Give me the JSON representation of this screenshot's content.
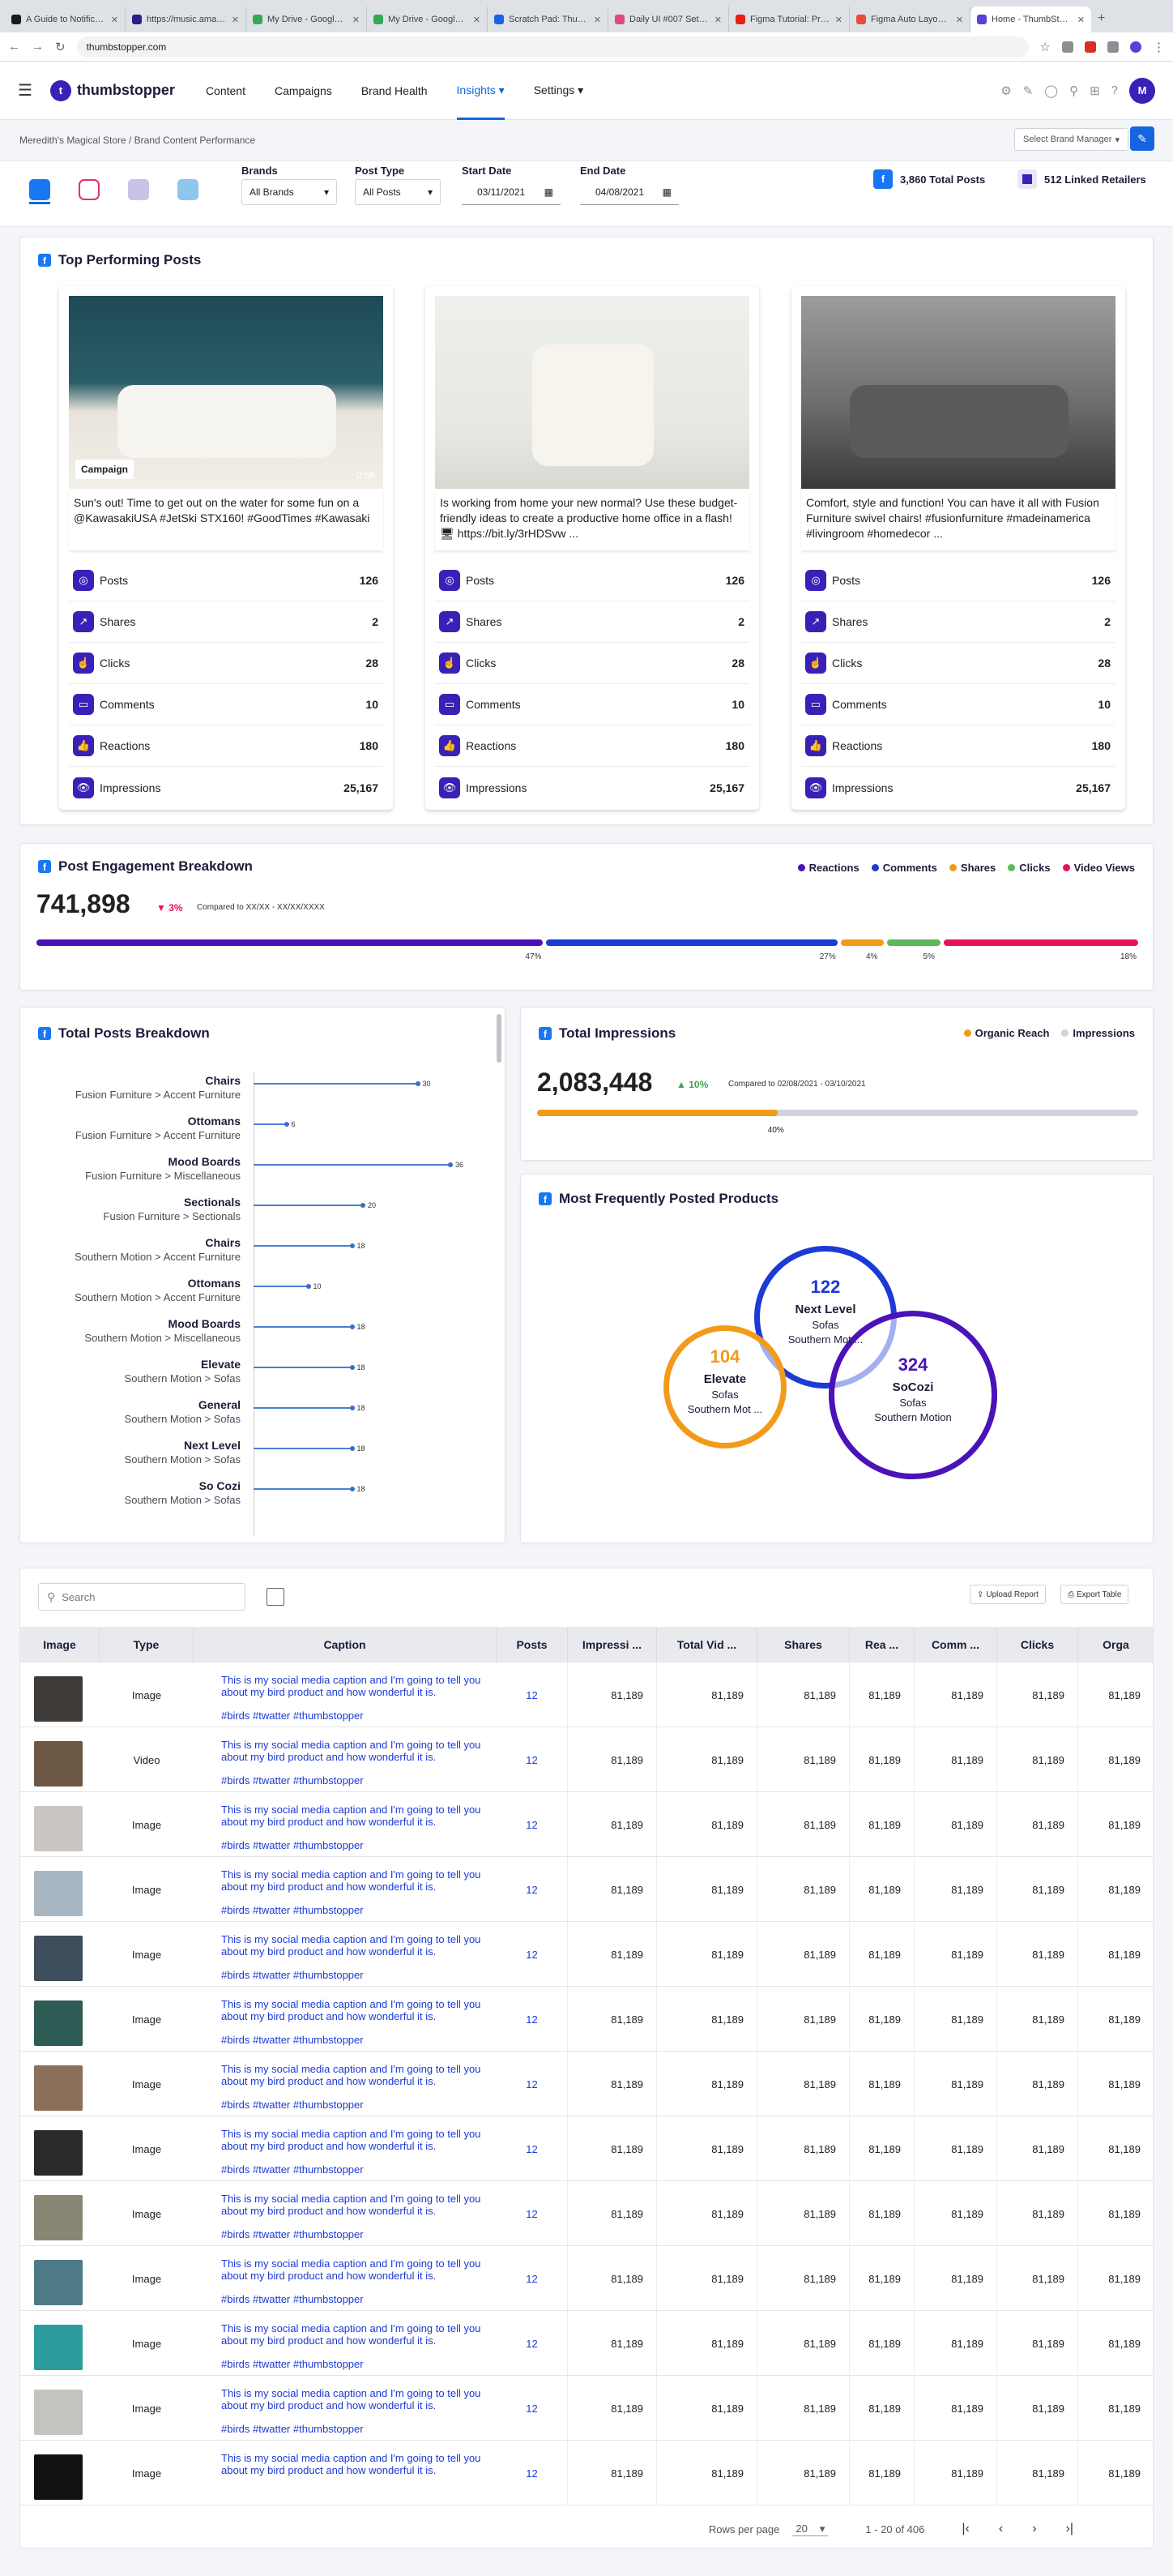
{
  "browser": {
    "tabs": [
      {
        "title": "A Guide to Notificatio",
        "color": "#1b1b1b"
      },
      {
        "title": "https://music.amazon",
        "color": "#2d1d8a"
      },
      {
        "title": "My Drive - Google Dri",
        "color": "#34a853"
      },
      {
        "title": "My Drive - Google Dri",
        "color": "#34a853"
      },
      {
        "title": "Scratch Pad: Thumbs",
        "color": "#1565e0"
      },
      {
        "title": "Daily UI #007 Settings",
        "color": "#e04880"
      },
      {
        "title": "Figma Tutorial: Protot",
        "color": "#e62117"
      },
      {
        "title": "Figma Auto Layout an",
        "color": "#e64c3c"
      },
      {
        "title": "Home - ThumbStopper",
        "color": "#5c3fd4"
      }
    ],
    "url": "thumbstopper.com"
  },
  "header": {
    "logo": "thumbstopper",
    "nav": [
      {
        "label": "Content"
      },
      {
        "label": "Campaigns"
      },
      {
        "label": "Brand Health"
      },
      {
        "label": "Insights ▾"
      },
      {
        "label": "Settings ▾"
      }
    ],
    "avatar": "M"
  },
  "breadcrumb": "Meredith's Magical Store / Brand Content Performance",
  "brand_manager": "Select Brand Manager",
  "filters": {
    "brands_label": "Brands",
    "brands_value": "All Brands",
    "posttype_label": "Post Type",
    "posttype_value": "All Posts",
    "start_label": "Start Date",
    "start_value": "03/11/2021",
    "end_label": "End Date",
    "end_value": "04/08/2021",
    "total_posts": "3,860 Total Posts",
    "linked_retailers": "512 Linked Retailers"
  },
  "top_posts": {
    "title": "Top Performing Posts",
    "posts": [
      {
        "caption": "Sun's out! Time to get out on the water for some fun on a  @KawasakiUSA #JetSki STX160! #GoodTimes #Kawasaki",
        "badge": "Campaign",
        "duration": "0:56",
        "metrics": [
          {
            "label": "Posts",
            "value": "126"
          },
          {
            "label": "Shares",
            "value": "2"
          },
          {
            "label": "Clicks",
            "value": "28"
          },
          {
            "label": "Comments",
            "value": "10"
          },
          {
            "label": "Reactions",
            "value": "180"
          },
          {
            "label": "Impressions",
            "value": "25,167"
          }
        ]
      },
      {
        "caption": "Is working from home your new normal? Use these budget-friendly ideas to create a productive home office in a flash!🖥 https://bit.ly/3rHDSvw ...",
        "badge": "",
        "duration": "",
        "metrics": [
          {
            "label": "Posts",
            "value": "126"
          },
          {
            "label": "Shares",
            "value": "2"
          },
          {
            "label": "Clicks",
            "value": "28"
          },
          {
            "label": "Comments",
            "value": "10"
          },
          {
            "label": "Reactions",
            "value": "180"
          },
          {
            "label": "Impressions",
            "value": "25,167"
          }
        ]
      },
      {
        "caption": "Comfort, style and function! You can have it all with Fusion Furniture swivel chairs! #fusionfurniture #madeinamerica #livingroom #homedecor ...",
        "badge": "",
        "duration": "",
        "metrics": [
          {
            "label": "Posts",
            "value": "126"
          },
          {
            "label": "Shares",
            "value": "2"
          },
          {
            "label": "Clicks",
            "value": "28"
          },
          {
            "label": "Comments",
            "value": "10"
          },
          {
            "label": "Reactions",
            "value": "180"
          },
          {
            "label": "Impressions",
            "value": "25,167"
          }
        ]
      }
    ]
  },
  "engagement": {
    "title": "Post Engagement Breakdown",
    "total": "741,898",
    "change": "3%",
    "compare": "Compared to XX/XX - XX/XX/XXXX",
    "legend": [
      {
        "label": "Reactions",
        "color": "#4a12b8"
      },
      {
        "label": "Comments",
        "color": "#1b3ad6"
      },
      {
        "label": "Shares",
        "color": "#f29a1a"
      },
      {
        "label": "Clicks",
        "color": "#5cb85c"
      },
      {
        "label": "Video Views",
        "color": "#e8125a"
      }
    ],
    "segments": [
      {
        "pct": 47,
        "label": "47%"
      },
      {
        "pct": 27,
        "label": "27%"
      },
      {
        "pct": 4,
        "label": "4%"
      },
      {
        "pct": 5,
        "label": "5%"
      },
      {
        "pct": 18,
        "label": "18%"
      }
    ]
  },
  "posts_breakdown": {
    "title": "Total Posts Breakdown",
    "items": [
      {
        "name": "Chairs",
        "sub": "Fusion Furniture > Accent Furniture",
        "value": 30
      },
      {
        "name": "Ottomans",
        "sub": "Fusion Furniture > Accent Furniture",
        "value": 6
      },
      {
        "name": "Mood Boards",
        "sub": "Fusion Furniture > Miscellaneous",
        "value": 36
      },
      {
        "name": "Sectionals",
        "sub": "Fusion Furniture > Sectionals",
        "value": 20
      },
      {
        "name": "Chairs",
        "sub": "Southern Motion > Accent Furniture",
        "value": 18
      },
      {
        "name": "Ottomans",
        "sub": "Southern Motion > Accent Furniture",
        "value": 10
      },
      {
        "name": "Mood Boards",
        "sub": "Southern Motion > Miscellaneous",
        "value": 18
      },
      {
        "name": "Elevate",
        "sub": "Southern Motion > Sofas",
        "value": 18
      },
      {
        "name": "General",
        "sub": "Southern Motion > Sofas",
        "value": 18
      },
      {
        "name": "Next Level",
        "sub": "Southern Motion > Sofas",
        "value": 18
      },
      {
        "name": "So Cozi",
        "sub": "Southern Motion > Sofas",
        "value": 18
      }
    ]
  },
  "impressions": {
    "title": "Total Impressions",
    "legend": [
      {
        "label": "Organic Reach",
        "color": "#f29a1a"
      },
      {
        "label": "Impressions",
        "color": "#d0d3da"
      }
    ],
    "total": "2,083,448",
    "change": "10%",
    "compare": "Compared to 02/08/2021 - 03/10/2021",
    "organic_pct": 40,
    "organic_label": "40%"
  },
  "frequent_products": {
    "title": "Most Frequently Posted Products",
    "circles": [
      {
        "count": "122",
        "name": "Next Level",
        "cat": "Sofas",
        "brand": "Southern Mot ...",
        "color": "#1b3ad6"
      },
      {
        "count": "104",
        "name": "Elevate",
        "cat": "Sofas",
        "brand": "Southern Mot ...",
        "color": "#f29a1a"
      },
      {
        "count": "324",
        "name": "SoCozi",
        "cat": "Sofas",
        "brand": "Southern Motion",
        "color": "#4a12b8"
      }
    ]
  },
  "table": {
    "search_placeholder": "Search",
    "upload_label": "Upload Report",
    "export_label": "Export Table",
    "columns": [
      "Image",
      "Type",
      "Caption",
      "Posts",
      "Impressi ...",
      "Total Vid ...",
      "Shares",
      "Rea ...",
      "Comm ...",
      "Clicks",
      "Orga"
    ],
    "rows": [
      {
        "type": "Image",
        "caption": "This is my social media caption and I'm going to tell you about my bird product and how wonderful it is.",
        "tags": "#birds #twatter #thumbstopper",
        "posts": "12",
        "v": "81,189",
        "thumb": "#3d3a38"
      },
      {
        "type": "Video",
        "caption": "This is my social media caption and I'm going to tell you about my bird product and how wonderful it is.",
        "tags": "#birds #twatter #thumbstopper",
        "posts": "12",
        "v": "81,189",
        "thumb": "#6b5744"
      },
      {
        "type": "Image",
        "caption": "This is my social media caption and I'm going to tell you about my bird product and how wonderful it is.",
        "tags": "#birds #twatter #thumbstopper",
        "posts": "12",
        "v": "81,189",
        "thumb": "#c9c6c2"
      },
      {
        "type": "Image",
        "caption": "This is my social media caption and I'm going to tell you about my bird product and how wonderful it is.",
        "tags": "#birds #twatter #thumbstopper",
        "posts": "12",
        "v": "81,189",
        "thumb": "#a8b6c2"
      },
      {
        "type": "Image",
        "caption": "This is my social media caption and I'm going to tell you about my bird product and how wonderful it is.",
        "tags": "#birds #twatter #thumbstopper",
        "posts": "12",
        "v": "81,189",
        "thumb": "#3f4e5c"
      },
      {
        "type": "Image",
        "caption": "This is my social media caption and I'm going to tell you about my bird product and how wonderful it is.",
        "tags": "#birds #twatter #thumbstopper",
        "posts": "12",
        "v": "81,189",
        "thumb": "#2e5b54"
      },
      {
        "type": "Image",
        "caption": "This is my social media caption and I'm going to tell you about my bird product and how wonderful it is.",
        "tags": "#birds #twatter #thumbstopper",
        "posts": "12",
        "v": "81,189",
        "thumb": "#8c6f5a"
      },
      {
        "type": "Image",
        "caption": "This is my social media caption and I'm going to tell you about my bird product and how wonderful it is.",
        "tags": "#birds #twatter #thumbstopper",
        "posts": "12",
        "v": "81,189",
        "thumb": "#2a2a2c"
      },
      {
        "type": "Image",
        "caption": "This is my social media caption and I'm going to tell you about my bird product and how wonderful it is.",
        "tags": "#birds #twatter #thumbstopper",
        "posts": "12",
        "v": "81,189",
        "thumb": "#8a8676"
      },
      {
        "type": "Image",
        "caption": "This is my social media caption and I'm going to tell you about my bird product and how wonderful it is.",
        "tags": "#birds #twatter #thumbstopper",
        "posts": "12",
        "v": "81,189",
        "thumb": "#4d7a86"
      },
      {
        "type": "Image",
        "caption": "This is my social media caption and I'm going to tell you about my bird product and how wonderful it is.",
        "tags": "#birds #twatter #thumbstopper",
        "posts": "12",
        "v": "81,189",
        "thumb": "#2c9b9e"
      },
      {
        "type": "Image",
        "caption": "This is my social media caption and I'm going to tell you about my bird product and how wonderful it is.",
        "tags": "#birds #twatter #thumbstopper",
        "posts": "12",
        "v": "81,189",
        "thumb": "#c5c3bf"
      },
      {
        "type": "Image",
        "caption": "This is my social media caption and I'm going to tell you about my bird product and how wonderful it is.",
        "tags": "",
        "posts": "12",
        "v": "81,189",
        "thumb": "#111111"
      }
    ],
    "rows_per_page_label": "Rows per page",
    "rows_per_page": "20",
    "range": "1 - 20 of 406"
  }
}
